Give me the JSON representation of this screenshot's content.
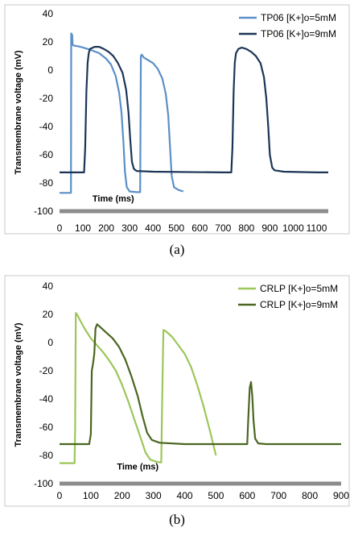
{
  "chart_data": [
    {
      "type": "line",
      "caption": "(a)",
      "xlabel": "Time (ms)",
      "ylabel": "Transmembrane voltage (mV)",
      "xlim": [
        0,
        1150
      ],
      "ylim": [
        -100,
        40
      ],
      "x_ticks": [
        "0",
        "100",
        "200",
        "300",
        "400",
        "500",
        "600",
        "700",
        "800",
        "900",
        "1000",
        "1100"
      ],
      "y_ticks": [
        "-100",
        "-80",
        "-60",
        "-40",
        "-20",
        "0",
        "20",
        "40"
      ],
      "grid": false,
      "legend_position": "top-right",
      "series": [
        {
          "name": "TP06 [K+]o=5mM",
          "color": "#5b8fc7",
          "points": [
            [
              0,
              -87
            ],
            [
              45,
              -87
            ],
            [
              49,
              -87
            ],
            [
              50,
              26
            ],
            [
              54,
              25
            ],
            [
              56,
              18
            ],
            [
              60,
              17.5
            ],
            [
              90,
              16.5
            ],
            [
              130,
              14.5
            ],
            [
              170,
              12
            ],
            [
              200,
              8
            ],
            [
              220,
              4
            ],
            [
              240,
              -4
            ],
            [
              255,
              -16
            ],
            [
              265,
              -30
            ],
            [
              273,
              -50
            ],
            [
              280,
              -72
            ],
            [
              288,
              -83
            ],
            [
              300,
              -86
            ],
            [
              330,
              -86.5
            ],
            [
              345,
              -86.5
            ],
            [
              348,
              10
            ],
            [
              352,
              11
            ],
            [
              360,
              9
            ],
            [
              380,
              7
            ],
            [
              400,
              5
            ],
            [
              420,
              1
            ],
            [
              440,
              -6
            ],
            [
              455,
              -17
            ],
            [
              465,
              -32
            ],
            [
              473,
              -55
            ],
            [
              480,
              -75
            ],
            [
              490,
              -83
            ],
            [
              510,
              -85
            ],
            [
              530,
              -86
            ]
          ]
        },
        {
          "name": "TP06 [K+]o=9mM",
          "color": "#1c3557",
          "points": [
            [
              0,
              -72.5
            ],
            [
              105,
              -72.5
            ],
            [
              110,
              -55
            ],
            [
              115,
              -15
            ],
            [
              120,
              5
            ],
            [
              125,
              12
            ],
            [
              130,
              15
            ],
            [
              150,
              16.5
            ],
            [
              170,
              16.5
            ],
            [
              190,
              15
            ],
            [
              210,
              13
            ],
            [
              230,
              10
            ],
            [
              250,
              5
            ],
            [
              270,
              -2
            ],
            [
              285,
              -14
            ],
            [
              295,
              -30
            ],
            [
              303,
              -50
            ],
            [
              310,
              -65
            ],
            [
              318,
              -70
            ],
            [
              330,
              -71.5
            ],
            [
              400,
              -72
            ],
            [
              700,
              -72.5
            ],
            [
              735,
              -72.5
            ],
            [
              740,
              -55
            ],
            [
              745,
              -15
            ],
            [
              750,
              5
            ],
            [
              755,
              12
            ],
            [
              765,
              15
            ],
            [
              780,
              16
            ],
            [
              800,
              15
            ],
            [
              820,
              13
            ],
            [
              840,
              10
            ],
            [
              860,
              5
            ],
            [
              875,
              -5
            ],
            [
              885,
              -20
            ],
            [
              893,
              -40
            ],
            [
              900,
              -60
            ],
            [
              910,
              -69
            ],
            [
              920,
              -71
            ],
            [
              960,
              -72
            ],
            [
              1100,
              -72.5
            ],
            [
              1150,
              -72.5
            ]
          ]
        }
      ]
    },
    {
      "type": "line",
      "caption": "(b)",
      "xlabel": "Time (ms)",
      "ylabel": "Transmembrane voltage (mV)",
      "xlim": [
        0,
        900
      ],
      "ylim": [
        -100,
        40
      ],
      "x_ticks": [
        "0",
        "100",
        "200",
        "300",
        "400",
        "500",
        "600",
        "700",
        "800",
        "900"
      ],
      "y_ticks": [
        "-100",
        "-80",
        "-60",
        "-40",
        "-20",
        "0",
        "20",
        "40"
      ],
      "grid": false,
      "legend_position": "top-right",
      "series": [
        {
          "name": "CRLP [K+]o=5mM",
          "color": "#9dc65a",
          "points": [
            [
              0,
              -85.5
            ],
            [
              48,
              -85.5
            ],
            [
              50,
              -60
            ],
            [
              52,
              21
            ],
            [
              56,
              20
            ],
            [
              65,
              16
            ],
            [
              80,
              10
            ],
            [
              100,
              3
            ],
            [
              120,
              -2
            ],
            [
              140,
              -7
            ],
            [
              160,
              -13
            ],
            [
              180,
              -20
            ],
            [
              200,
              -30
            ],
            [
              220,
              -42
            ],
            [
              240,
              -55
            ],
            [
              260,
              -68
            ],
            [
              275,
              -78
            ],
            [
              290,
              -83
            ],
            [
              310,
              -84.5
            ],
            [
              325,
              -85
            ],
            [
              328,
              -40
            ],
            [
              332,
              9
            ],
            [
              340,
              8
            ],
            [
              360,
              4
            ],
            [
              380,
              -2
            ],
            [
              400,
              -8
            ],
            [
              420,
              -17
            ],
            [
              440,
              -30
            ],
            [
              460,
              -45
            ],
            [
              480,
              -62
            ],
            [
              500,
              -80
            ]
          ]
        },
        {
          "name": "CRLP [K+]o=9mM",
          "color": "#4a6621",
          "points": [
            [
              0,
              -72
            ],
            [
              95,
              -72
            ],
            [
              100,
              -65
            ],
            [
              103,
              -20
            ],
            [
              107,
              -15
            ],
            [
              111,
              -8
            ],
            [
              115,
              10
            ],
            [
              120,
              13
            ],
            [
              130,
              11
            ],
            [
              150,
              7
            ],
            [
              170,
              3
            ],
            [
              190,
              -3
            ],
            [
              210,
              -12
            ],
            [
              230,
              -24
            ],
            [
              250,
              -38
            ],
            [
              265,
              -52
            ],
            [
              280,
              -64
            ],
            [
              295,
              -69
            ],
            [
              320,
              -71
            ],
            [
              400,
              -72
            ],
            [
              600,
              -72
            ],
            [
              603,
              -55
            ],
            [
              608,
              -32
            ],
            [
              612,
              -28
            ],
            [
              616,
              -38
            ],
            [
              620,
              -55
            ],
            [
              625,
              -68
            ],
            [
              635,
              -71.5
            ],
            [
              660,
              -72
            ],
            [
              900,
              -72
            ]
          ]
        }
      ]
    }
  ]
}
